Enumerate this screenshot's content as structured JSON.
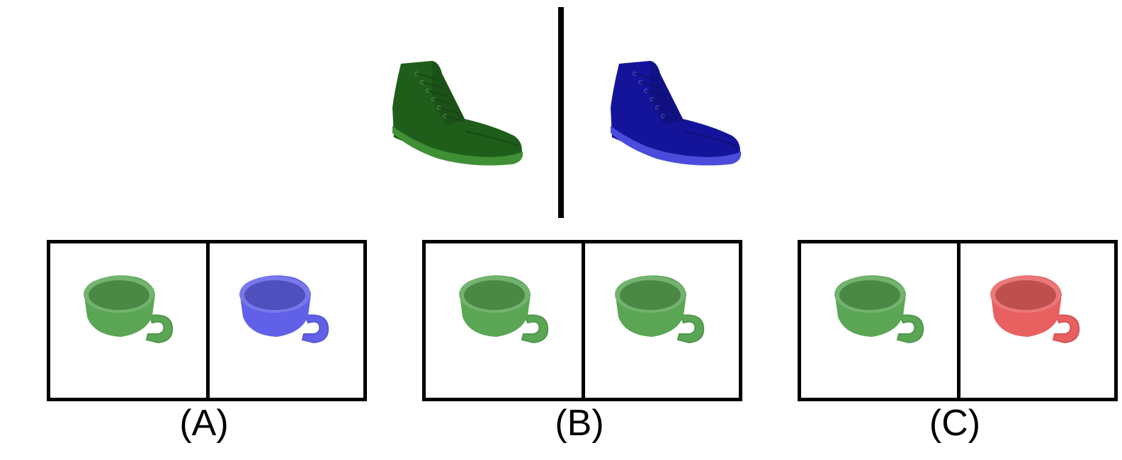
{
  "prompt": {
    "left_object": {
      "icon": "boot-icon",
      "color": "#1f5e1a",
      "sole": "#3f8f34"
    },
    "right_object": {
      "icon": "boot-icon",
      "color": "#14149a",
      "sole": "#4b4bdc"
    }
  },
  "options": [
    {
      "label": "(A)",
      "left_cup": "#5aa655",
      "right_cup": "#6060e8"
    },
    {
      "label": "(B)",
      "left_cup": "#5aa655",
      "right_cup": "#5aa655"
    },
    {
      "label": "(C)",
      "left_cup": "#5aa655",
      "right_cup": "#e86060"
    }
  ],
  "icons": {
    "object": "boot-icon",
    "option_item": "cup-icon"
  }
}
